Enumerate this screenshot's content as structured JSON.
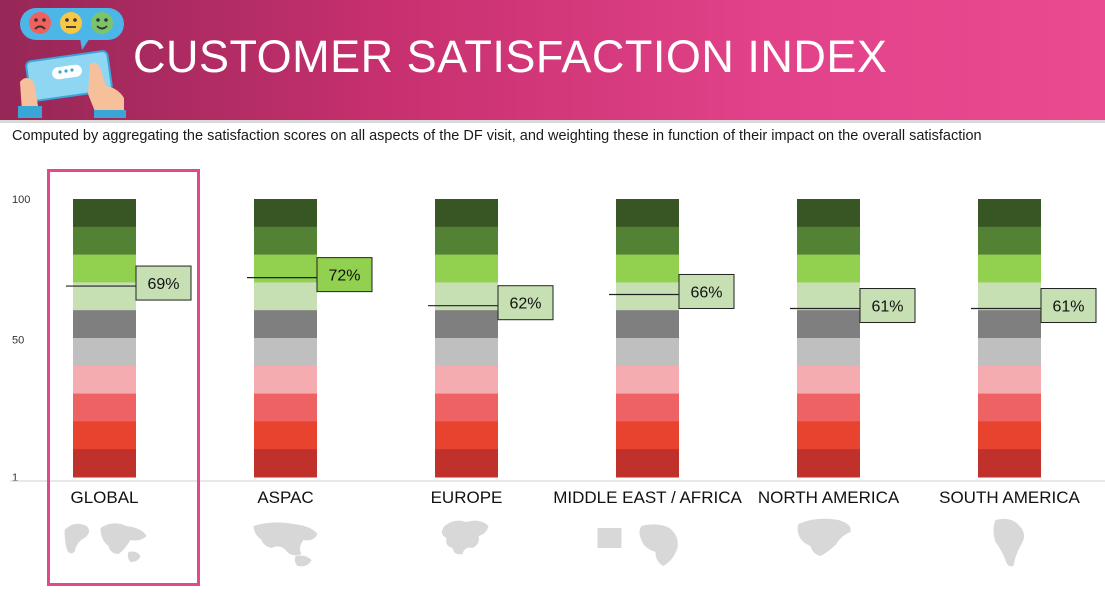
{
  "header": {
    "title": "CUSTOMER SATISFACTION INDEX",
    "subtitle": "Computed by aggregating the satisfaction scores on all aspects of the DF visit, and weighting these in function of their impact on the overall satisfaction",
    "background_color": "#c7306e"
  },
  "chart_data": {
    "type": "bar",
    "title": "CUSTOMER SATISFACTION INDEX",
    "subtitle": "Computed by aggregating the satisfaction scores on all aspects of the DF visit, and weighting these in function of their impact on the overall satisfaction",
    "y_ticks": [
      "100",
      "50",
      "1"
    ],
    "ylim": [
      1,
      100
    ],
    "categories": [
      "GLOBAL",
      "ASPAC",
      "EUROPE",
      "MIDDLE EAST / AFRICA",
      "NORTH AMERICA",
      "SOUTH AMERICA"
    ],
    "values": [
      69,
      72,
      62,
      66,
      61,
      61
    ],
    "value_labels": [
      "69%",
      "72%",
      "62%",
      "66%",
      "61%",
      "61%"
    ],
    "value_label_fills": [
      "#c6e0b4",
      "#92d050",
      "#c6e0b4",
      "#c6e0b4",
      "#c6e0b4",
      "#c6e0b4"
    ],
    "band_colors_top_to_bottom": [
      "#375623",
      "#548235",
      "#92d050",
      "#c6e0b4",
      "#7f7f7f",
      "#bfbfbf",
      "#f4acb0",
      "#ee6264",
      "#e8432f",
      "#c0312b"
    ],
    "highlighted_category": "GLOBAL",
    "highlight_color": "#e2488c",
    "region_map_icons": [
      "world-map-icon",
      "asia-pacific-map-icon",
      "europe-map-icon",
      "middle-east-africa-map-icon",
      "north-america-map-icon",
      "south-america-map-icon"
    ],
    "grid": false,
    "legend": "none"
  }
}
